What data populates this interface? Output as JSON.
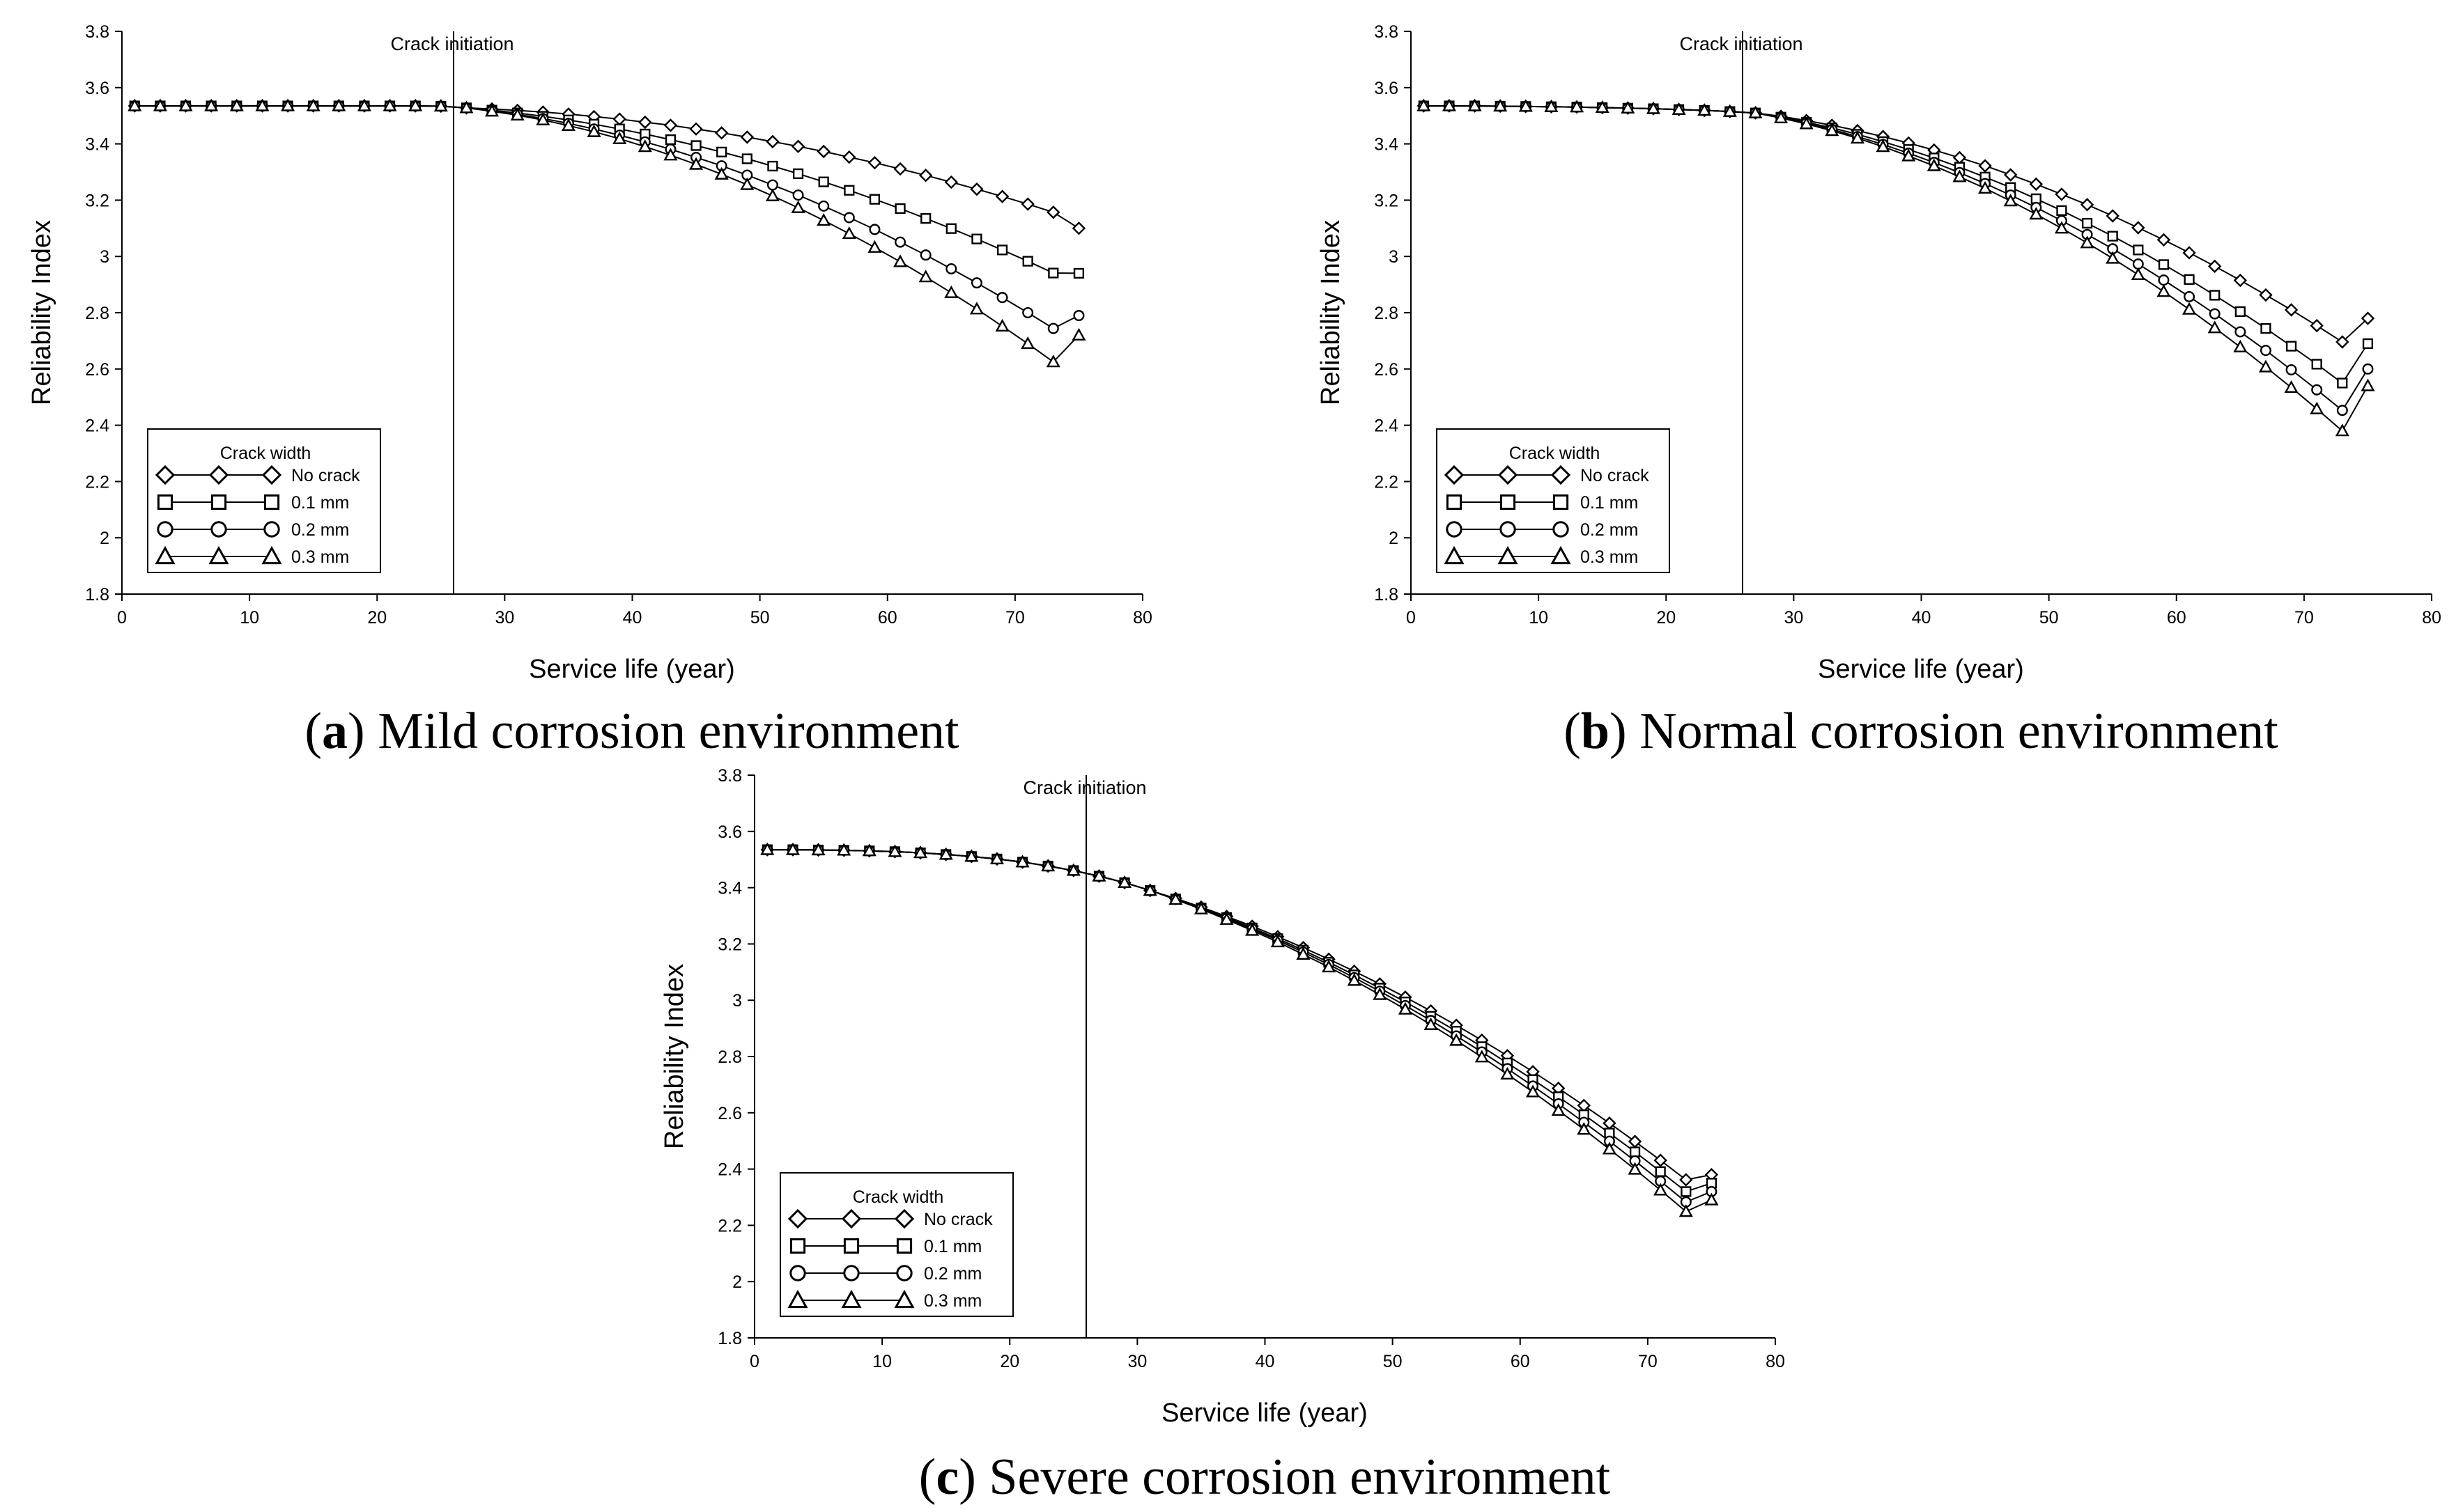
{
  "chart_data": [
    {
      "id": "a",
      "type": "line",
      "caption_letter": "a",
      "caption_text": "Mild corrosion environment",
      "xlabel": "Service life (year)",
      "ylabel": "Reliability Index",
      "xlim": [
        0,
        80
      ],
      "ylim": [
        1.8,
        3.8
      ],
      "xticks": [
        0,
        10,
        20,
        30,
        40,
        50,
        60,
        70,
        80
      ],
      "yticks": [
        "1.8",
        "2",
        "2.2",
        "2.4",
        "2.6",
        "2.8",
        "3",
        "3.2",
        "3.4",
        "3.6",
        "3.8"
      ],
      "annotation": {
        "label": "Crack initiation",
        "x": 26
      },
      "legend": {
        "title": "Crack width",
        "position": "bottom-left"
      },
      "x": [
        1,
        3,
        5,
        7,
        9,
        11,
        13,
        15,
        17,
        19,
        21,
        23,
        25,
        27,
        29,
        31,
        33,
        35,
        37,
        39,
        41,
        43,
        45,
        47,
        49,
        51,
        53,
        55,
        57,
        59,
        61,
        63,
        65,
        67,
        69,
        71,
        73,
        75
      ],
      "series": [
        {
          "name": "No crack",
          "marker": "diamond",
          "values": [
            3.535,
            3.535,
            3.535,
            3.535,
            3.535,
            3.535,
            3.535,
            3.535,
            3.535,
            3.535,
            3.535,
            3.535,
            3.534,
            3.528,
            3.524,
            3.519,
            3.513,
            3.506,
            3.497,
            3.488,
            3.477,
            3.466,
            3.453,
            3.439,
            3.424,
            3.408,
            3.391,
            3.373,
            3.353,
            3.333,
            3.311,
            3.288,
            3.264,
            3.239,
            3.213,
            3.186,
            3.157,
            3.1
          ]
        },
        {
          "name": "0.1 mm",
          "marker": "square",
          "values": [
            3.535,
            3.535,
            3.535,
            3.535,
            3.535,
            3.535,
            3.535,
            3.535,
            3.535,
            3.535,
            3.535,
            3.535,
            3.534,
            3.528,
            3.52,
            3.51,
            3.498,
            3.485,
            3.47,
            3.453,
            3.435,
            3.415,
            3.394,
            3.371,
            3.347,
            3.321,
            3.294,
            3.265,
            3.235,
            3.203,
            3.17,
            3.135,
            3.099,
            3.062,
            3.023,
            2.983,
            2.941,
            2.94
          ]
        },
        {
          "name": "0.2 mm",
          "marker": "circle",
          "values": [
            3.535,
            3.535,
            3.535,
            3.535,
            3.535,
            3.535,
            3.535,
            3.535,
            3.535,
            3.535,
            3.535,
            3.535,
            3.534,
            3.528,
            3.518,
            3.505,
            3.49,
            3.473,
            3.453,
            3.431,
            3.407,
            3.381,
            3.352,
            3.322,
            3.289,
            3.254,
            3.218,
            3.179,
            3.138,
            3.096,
            3.051,
            3.005,
            2.956,
            2.906,
            2.854,
            2.8,
            2.744,
            2.79
          ]
        },
        {
          "name": "0.3 mm",
          "marker": "triangle",
          "values": [
            3.535,
            3.535,
            3.535,
            3.535,
            3.535,
            3.535,
            3.535,
            3.535,
            3.535,
            3.535,
            3.535,
            3.535,
            3.534,
            3.528,
            3.516,
            3.502,
            3.485,
            3.465,
            3.443,
            3.418,
            3.39,
            3.36,
            3.327,
            3.292,
            3.255,
            3.215,
            3.173,
            3.128,
            3.081,
            3.032,
            2.981,
            2.927,
            2.871,
            2.813,
            2.752,
            2.69,
            2.625,
            2.72
          ]
        }
      ]
    },
    {
      "id": "b",
      "type": "line",
      "caption_letter": "b",
      "caption_text": "Normal corrosion environment",
      "xlabel": "Service life (year)",
      "ylabel": "Reliability Index",
      "xlim": [
        0,
        80
      ],
      "ylim": [
        1.8,
        3.8
      ],
      "xticks": [
        0,
        10,
        20,
        30,
        40,
        50,
        60,
        70,
        80
      ],
      "yticks": [
        "1.8",
        "2",
        "2.2",
        "2.4",
        "2.6",
        "2.8",
        "3",
        "3.2",
        "3.4",
        "3.6",
        "3.8"
      ],
      "annotation": {
        "label": "Crack initiation",
        "x": 26
      },
      "legend": {
        "title": "Crack width",
        "position": "bottom-left"
      },
      "x": [
        1,
        3,
        5,
        7,
        9,
        11,
        13,
        15,
        17,
        19,
        21,
        23,
        25,
        27,
        29,
        31,
        33,
        35,
        37,
        39,
        41,
        43,
        45,
        47,
        49,
        51,
        53,
        55,
        57,
        59,
        61,
        63,
        65,
        67,
        69,
        71,
        73,
        75
      ],
      "series": [
        {
          "name": "No crack",
          "marker": "diamond",
          "values": [
            3.535,
            3.535,
            3.535,
            3.534,
            3.533,
            3.532,
            3.531,
            3.529,
            3.527,
            3.525,
            3.522,
            3.519,
            3.515,
            3.51,
            3.498,
            3.483,
            3.466,
            3.447,
            3.426,
            3.403,
            3.378,
            3.351,
            3.322,
            3.29,
            3.257,
            3.221,
            3.184,
            3.144,
            3.102,
            3.059,
            3.013,
            2.965,
            2.915,
            2.863,
            2.81,
            2.754,
            2.696,
            2.78
          ]
        },
        {
          "name": "0.1 mm",
          "marker": "square",
          "values": [
            3.535,
            3.535,
            3.535,
            3.534,
            3.533,
            3.532,
            3.531,
            3.529,
            3.527,
            3.525,
            3.522,
            3.519,
            3.515,
            3.51,
            3.495,
            3.477,
            3.457,
            3.434,
            3.408,
            3.38,
            3.35,
            3.317,
            3.282,
            3.245,
            3.205,
            3.163,
            3.118,
            3.072,
            3.023,
            2.971,
            2.918,
            2.862,
            2.804,
            2.744,
            2.681,
            2.617,
            2.55,
            2.69
          ]
        },
        {
          "name": "0.2 mm",
          "marker": "circle",
          "values": [
            3.535,
            3.535,
            3.535,
            3.534,
            3.533,
            3.532,
            3.531,
            3.529,
            3.527,
            3.525,
            3.522,
            3.519,
            3.515,
            3.51,
            3.493,
            3.474,
            3.451,
            3.426,
            3.398,
            3.367,
            3.334,
            3.298,
            3.259,
            3.218,
            3.174,
            3.127,
            3.078,
            3.027,
            2.973,
            2.916,
            2.857,
            2.796,
            2.732,
            2.666,
            2.597,
            2.526,
            2.453,
            2.6
          ]
        },
        {
          "name": "0.3 mm",
          "marker": "triangle",
          "values": [
            3.535,
            3.535,
            3.535,
            3.534,
            3.533,
            3.532,
            3.531,
            3.529,
            3.527,
            3.525,
            3.522,
            3.519,
            3.515,
            3.51,
            3.492,
            3.471,
            3.447,
            3.42,
            3.39,
            3.357,
            3.322,
            3.283,
            3.242,
            3.197,
            3.15,
            3.1,
            3.048,
            2.993,
            2.935,
            2.875,
            2.812,
            2.746,
            2.678,
            2.607,
            2.534,
            2.458,
            2.38,
            2.54
          ]
        }
      ]
    },
    {
      "id": "c",
      "type": "line",
      "caption_letter": "c",
      "caption_text": "Severe corrosion environment",
      "xlabel": "Service life (year)",
      "ylabel": "Reliability Index",
      "xlim": [
        0,
        80
      ],
      "ylim": [
        1.8,
        3.8
      ],
      "xticks": [
        0,
        10,
        20,
        30,
        40,
        50,
        60,
        70,
        80
      ],
      "yticks": [
        "1.8",
        "2",
        "2.2",
        "2.4",
        "2.6",
        "2.8",
        "3",
        "3.2",
        "3.4",
        "3.6",
        "3.8"
      ],
      "annotation": {
        "label": "Crack initiation",
        "x": 26
      },
      "legend": {
        "title": "Crack width",
        "position": "bottom-left"
      },
      "x": [
        1,
        3,
        5,
        7,
        9,
        11,
        13,
        15,
        17,
        19,
        21,
        23,
        25,
        27,
        29,
        31,
        33,
        35,
        37,
        39,
        41,
        43,
        45,
        47,
        49,
        51,
        53,
        55,
        57,
        59,
        61,
        63,
        65,
        67,
        69,
        71,
        73,
        75
      ],
      "series": [
        {
          "name": "No crack",
          "marker": "diamond",
          "values": [
            3.535,
            3.535,
            3.534,
            3.533,
            3.531,
            3.528,
            3.524,
            3.518,
            3.511,
            3.502,
            3.491,
            3.477,
            3.461,
            3.441,
            3.418,
            3.39,
            3.362,
            3.331,
            3.298,
            3.263,
            3.226,
            3.187,
            3.146,
            3.103,
            3.058,
            3.011,
            2.962,
            2.911,
            2.858,
            2.803,
            2.746,
            2.687,
            2.626,
            2.563,
            2.498,
            2.431,
            2.362,
            2.38
          ]
        },
        {
          "name": "0.1 mm",
          "marker": "square",
          "values": [
            3.535,
            3.535,
            3.534,
            3.533,
            3.531,
            3.528,
            3.524,
            3.518,
            3.511,
            3.502,
            3.491,
            3.477,
            3.461,
            3.441,
            3.418,
            3.39,
            3.36,
            3.328,
            3.294,
            3.257,
            3.219,
            3.178,
            3.135,
            3.09,
            3.043,
            2.994,
            2.943,
            2.89,
            2.835,
            2.777,
            2.718,
            2.657,
            2.593,
            2.528,
            2.461,
            2.391,
            2.32,
            2.35
          ]
        },
        {
          "name": "0.2 mm",
          "marker": "circle",
          "values": [
            3.535,
            3.535,
            3.534,
            3.533,
            3.531,
            3.528,
            3.524,
            3.518,
            3.511,
            3.502,
            3.491,
            3.477,
            3.461,
            3.441,
            3.418,
            3.39,
            3.359,
            3.326,
            3.291,
            3.253,
            3.213,
            3.171,
            3.127,
            3.08,
            3.032,
            2.981,
            2.928,
            2.873,
            2.816,
            2.757,
            2.695,
            2.632,
            2.566,
            2.499,
            2.429,
            2.357,
            2.283,
            2.32
          ]
        },
        {
          "name": "0.3 mm",
          "marker": "triangle",
          "values": [
            3.535,
            3.535,
            3.534,
            3.533,
            3.531,
            3.528,
            3.524,
            3.518,
            3.511,
            3.502,
            3.491,
            3.477,
            3.461,
            3.441,
            3.418,
            3.39,
            3.358,
            3.324,
            3.287,
            3.248,
            3.207,
            3.163,
            3.118,
            3.07,
            3.02,
            2.968,
            2.913,
            2.857,
            2.798,
            2.737,
            2.674,
            2.608,
            2.541,
            2.471,
            2.399,
            2.325,
            2.249,
            2.29
          ]
        }
      ]
    }
  ]
}
